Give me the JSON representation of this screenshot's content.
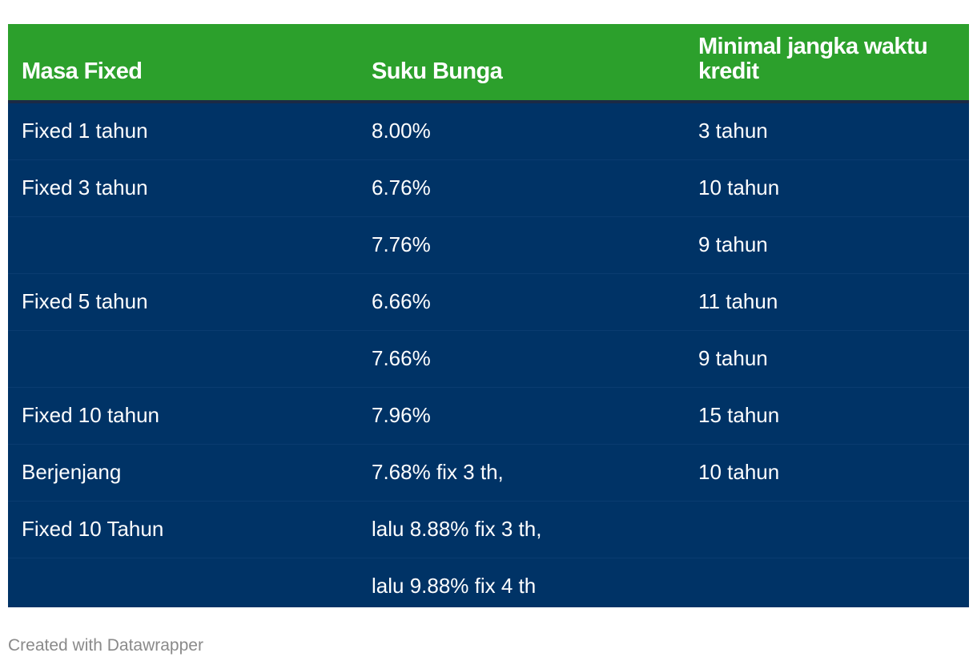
{
  "table": {
    "header": [
      "Masa Fixed",
      "Suku Bunga",
      "Minimal jangka waktu kredit"
    ],
    "rows": [
      [
        "Fixed 1 tahun",
        "8.00%",
        "3 tahun"
      ],
      [
        "Fixed 3 tahun",
        "6.76%",
        "10 tahun"
      ],
      [
        "",
        "7.76%",
        "9 tahun"
      ],
      [
        "Fixed 5 tahun",
        "6.66%",
        "11 tahun"
      ],
      [
        "",
        "7.66%",
        "9 tahun"
      ],
      [
        "Fixed 10 tahun",
        "7.96%",
        "15 tahun"
      ],
      [
        "Berjenjang",
        "7.68% fix 3 th,",
        "10 tahun"
      ],
      [
        "Fixed 10 Tahun",
        "lalu 8.88% fix 3 th,",
        ""
      ],
      [
        "",
        "lalu 9.88% fix 4 th",
        ""
      ]
    ]
  },
  "footer": {
    "credit": "Created with Datawrapper"
  },
  "colors": {
    "header_bg": "#2ca02c",
    "body_bg": "#003366",
    "text": "#ffffff",
    "footer_text": "#8a8a8a"
  }
}
